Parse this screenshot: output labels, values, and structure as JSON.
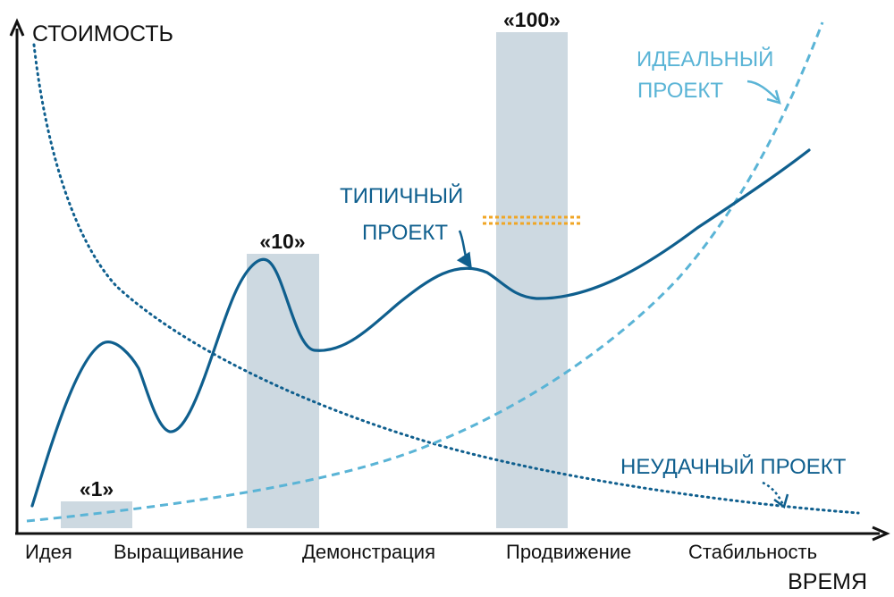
{
  "axes": {
    "y_label": "СТОИМОСТЬ",
    "x_label": "ВРЕМЯ"
  },
  "stages": [
    "Идея",
    "Выращивание",
    "Демонстрация",
    "Продвижение",
    "Стабильность"
  ],
  "bars": [
    {
      "label": "«1»"
    },
    {
      "label": "«10»"
    },
    {
      "label": "«100»"
    }
  ],
  "curves": {
    "typical": {
      "label_line1": "ТИПИЧНЫЙ",
      "label_line2": "ПРОЕКТ",
      "color": "#0f5f8e",
      "style": "solid"
    },
    "ideal": {
      "label_line1": "ИДЕАЛЬНЫЙ",
      "label_line2": "ПРОЕКТ",
      "color": "#5ab4d6",
      "style": "dashed"
    },
    "failed": {
      "label": "НЕУДАЧНЫЙ ПРОЕКТ",
      "color": "#0f5f8e",
      "style": "dotted"
    }
  },
  "colors": {
    "bar_fill": "#cdd9e1",
    "marker": "#f0a626",
    "axis": "#111111"
  }
}
